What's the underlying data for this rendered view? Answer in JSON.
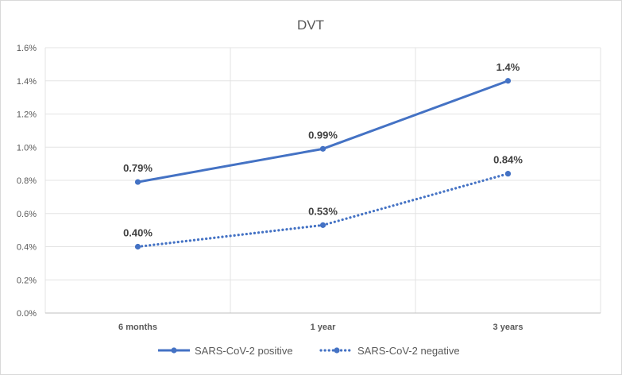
{
  "chart_data": {
    "type": "line",
    "title": "DVT",
    "categories": [
      "6 months",
      "1 year",
      "3 years"
    ],
    "ylim": [
      0,
      0.016
    ],
    "yticks": [
      "0.0%",
      "0.2%",
      "0.4%",
      "0.6%",
      "0.8%",
      "1.0%",
      "1.2%",
      "1.4%",
      "1.6%"
    ],
    "grid": "vertical and horizontal",
    "legend_position": "bottom",
    "series": [
      {
        "name": "SARS-CoV-2 positive",
        "values": [
          0.0079,
          0.0099,
          0.014
        ],
        "labels": [
          "0.79%",
          "0.99%",
          "1.4%"
        ],
        "line_style": "solid",
        "color": "#4472c4"
      },
      {
        "name": "SARS-CoV-2 negative",
        "values": [
          0.004,
          0.0053,
          0.0084
        ],
        "labels": [
          "0.40%",
          "0.53%",
          "0.84%"
        ],
        "line_style": "dotted",
        "color": "#4472c4"
      }
    ]
  }
}
